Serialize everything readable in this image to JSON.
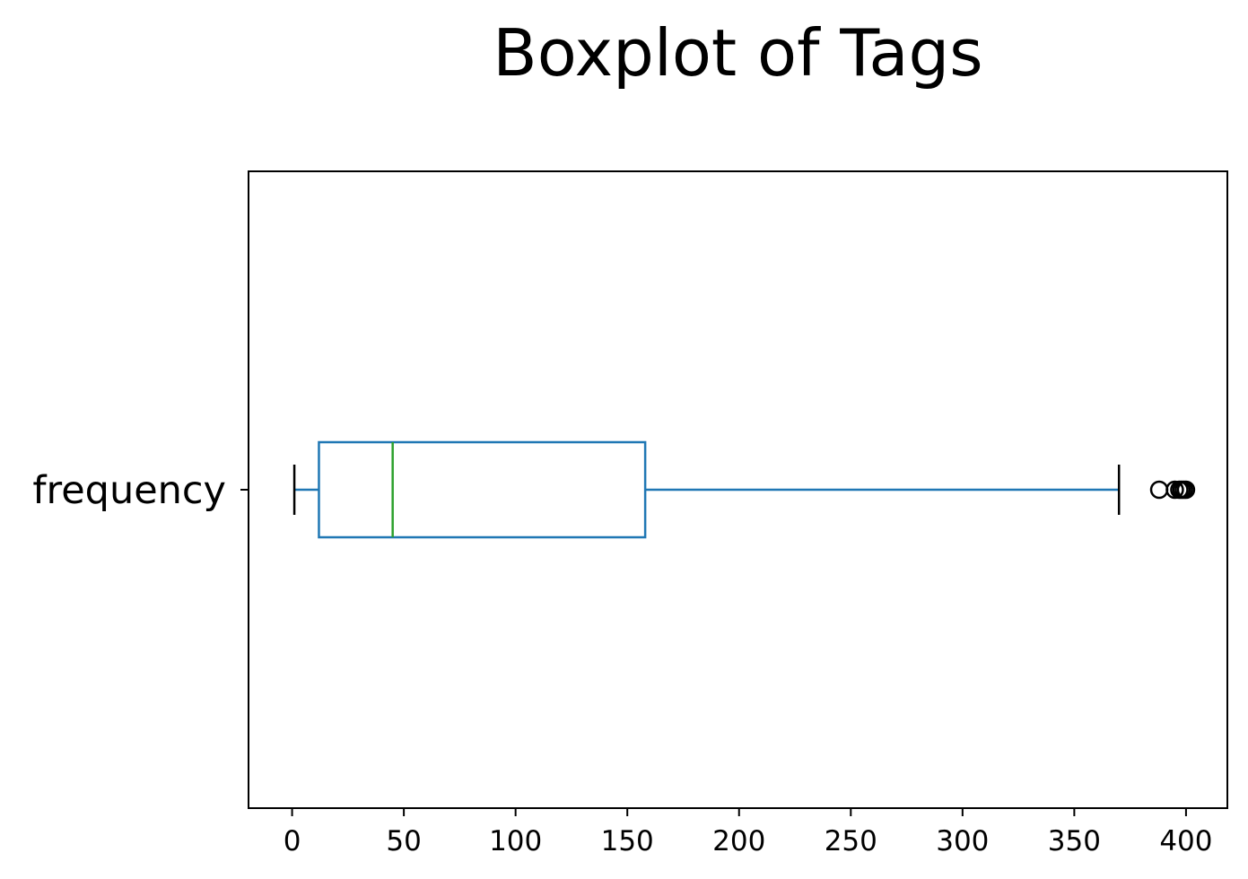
{
  "chart_data": {
    "type": "boxplot",
    "title": "Boxplot of Tags",
    "xlabel": "",
    "ylabel": "",
    "orientation": "horizontal",
    "xlim": [
      -19.5,
      418.5
    ],
    "xticks": [
      0,
      50,
      100,
      150,
      200,
      250,
      300,
      350,
      400
    ],
    "xtick_labels": [
      "0",
      "50",
      "100",
      "150",
      "200",
      "250",
      "300",
      "350",
      "400"
    ],
    "categories": [
      "frequency"
    ],
    "boxes": [
      {
        "category": "frequency",
        "whisker_low": 1,
        "q1": 12,
        "median": 45,
        "q3": 158,
        "whisker_high": 370,
        "outliers": [
          388,
          395,
          397,
          398,
          399,
          400
        ]
      }
    ],
    "grid": false,
    "colors": {
      "box": "#1f77b4",
      "median": "#2ca02c",
      "whisker_cap": "#000000",
      "outlier_edge": "#000000",
      "frame": "#000000"
    }
  }
}
